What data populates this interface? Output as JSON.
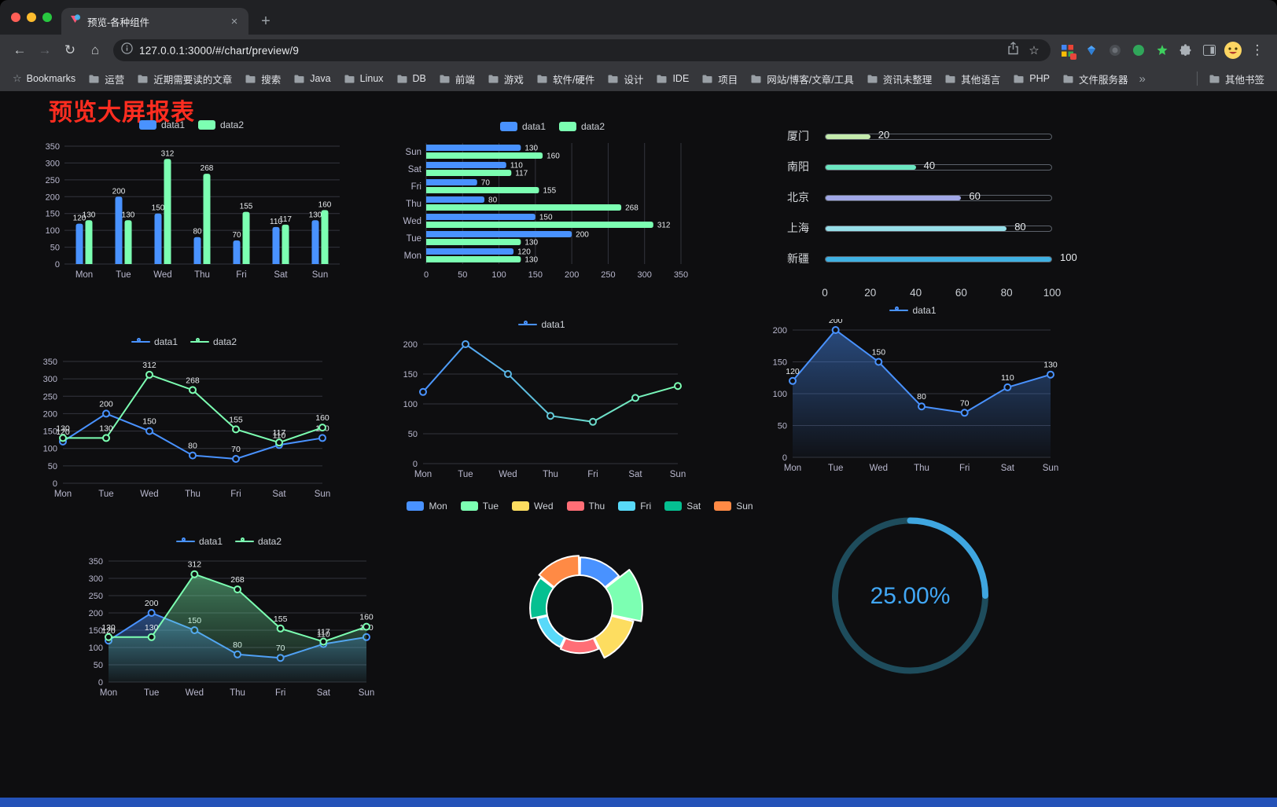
{
  "browser": {
    "tab_title": "预览-各种组件",
    "url": "127.0.0.1:3000/#/chart/preview/9",
    "icons": {
      "close_tab": "×",
      "new_tab": "+",
      "back": "←",
      "forward": "→",
      "reload": "↻",
      "home": "⌂",
      "star": "☆",
      "menu": "⋮"
    }
  },
  "bookmarks": {
    "bookmarks_label": "Bookmarks",
    "folders": [
      "运营",
      "近期需要读的文章",
      "搜索",
      "Java",
      "Linux",
      "DB",
      "前端",
      "游戏",
      "软件/硬件",
      "设计",
      "IDE",
      "项目",
      "网站/博客/文章/工具",
      "资讯未整理",
      "其他语言",
      "PHP",
      "文件服务器"
    ],
    "overflow_icon": "»",
    "other_bookmarks_label": "其他书签"
  },
  "page": {
    "title": "预览大屏报表"
  },
  "chart_data": [
    {
      "id": "grouped-bar",
      "type": "bar",
      "categories": [
        "Mon",
        "Tue",
        "Wed",
        "Thu",
        "Fri",
        "Sat",
        "Sun"
      ],
      "series": [
        {
          "name": "data1",
          "color": "#4992ff",
          "values": [
            120,
            200,
            150,
            80,
            70,
            110,
            130
          ]
        },
        {
          "name": "data2",
          "color": "#7cffb2",
          "values": [
            130,
            130,
            312,
            268,
            155,
            117,
            160
          ]
        }
      ],
      "ylim": [
        0,
        350
      ],
      "yticks": [
        0,
        50,
        100,
        150,
        200,
        250,
        300,
        350
      ],
      "show_labels": true
    },
    {
      "id": "horizontal-grouped-bar",
      "type": "hbar",
      "categories": [
        "Mon",
        "Tue",
        "Wed",
        "Thu",
        "Fri",
        "Sat",
        "Sun"
      ],
      "series": [
        {
          "name": "data1",
          "color": "#4992ff",
          "values": [
            120,
            200,
            150,
            80,
            70,
            110,
            130
          ]
        },
        {
          "name": "data2",
          "color": "#7cffb2",
          "values": [
            130,
            130,
            312,
            268,
            155,
            117,
            160
          ]
        }
      ],
      "xlim": [
        0,
        350
      ],
      "xticks": [
        0,
        50,
        100,
        150,
        200,
        250,
        300,
        350
      ],
      "show_labels": true
    },
    {
      "id": "city-progress-bars",
      "type": "progress",
      "max": 100,
      "items": [
        {
          "label": "厦门",
          "value": 20,
          "color": "#c4ebad"
        },
        {
          "label": "南阳",
          "value": 40,
          "color": "#6be6c1"
        },
        {
          "label": "北京",
          "value": 60,
          "color": "#a0a7e6"
        },
        {
          "label": "上海",
          "value": 80,
          "color": "#96dee8"
        },
        {
          "label": "新疆",
          "value": 100,
          "color": "#3fb1e3"
        }
      ],
      "xticks": [
        0,
        20,
        40,
        60,
        80,
        100
      ]
    },
    {
      "id": "two-series-line",
      "type": "line",
      "categories": [
        "Mon",
        "Tue",
        "Wed",
        "Thu",
        "Fri",
        "Sat",
        "Sun"
      ],
      "series": [
        {
          "name": "data1",
          "color": "#4992ff",
          "values": [
            120,
            200,
            150,
            80,
            70,
            110,
            130
          ]
        },
        {
          "name": "data2",
          "color": "#7cffb2",
          "values": [
            130,
            130,
            312,
            268,
            155,
            117,
            160
          ]
        }
      ],
      "ylim": [
        0,
        350
      ],
      "yticks": [
        0,
        50,
        100,
        150,
        200,
        250,
        300,
        350
      ],
      "show_labels": true
    },
    {
      "id": "gradient-line",
      "type": "line",
      "categories": [
        "Mon",
        "Tue",
        "Wed",
        "Thu",
        "Fri",
        "Sat",
        "Sun"
      ],
      "series": [
        {
          "name": "data1",
          "color": "#4992ff",
          "gradient": [
            "#4992ff",
            "#7cffb2"
          ],
          "values": [
            120,
            200,
            150,
            80,
            70,
            110,
            130
          ]
        }
      ],
      "ylim": [
        0,
        200
      ],
      "yticks": [
        0,
        50,
        100,
        150,
        200
      ],
      "show_labels": false
    },
    {
      "id": "area-line",
      "type": "line",
      "categories": [
        "Mon",
        "Tue",
        "Wed",
        "Thu",
        "Fri",
        "Sat",
        "Sun"
      ],
      "series": [
        {
          "name": "data1",
          "color": "#4992ff",
          "area": true,
          "values": [
            120,
            200,
            150,
            80,
            70,
            110,
            130
          ]
        }
      ],
      "ylim": [
        0,
        200
      ],
      "yticks": [
        0,
        50,
        100,
        150,
        200
      ],
      "show_labels": true
    },
    {
      "id": "two-series-area-line",
      "type": "line",
      "categories": [
        "Mon",
        "Tue",
        "Wed",
        "Thu",
        "Fri",
        "Sat",
        "Sun"
      ],
      "series": [
        {
          "name": "data1",
          "color": "#4992ff",
          "area": true,
          "values": [
            120,
            200,
            150,
            80,
            70,
            110,
            130
          ]
        },
        {
          "name": "data2",
          "color": "#7cffb2",
          "area": true,
          "values": [
            130,
            130,
            312,
            268,
            155,
            117,
            160
          ]
        }
      ],
      "ylim": [
        0,
        350
      ],
      "yticks": [
        0,
        50,
        100,
        150,
        200,
        250,
        300,
        350
      ],
      "show_labels": true
    },
    {
      "id": "rose-pie",
      "type": "pie",
      "rose": true,
      "inner_radius": 42,
      "outer_radius": 80,
      "items": [
        {
          "name": "Mon",
          "value": 120,
          "color": "#4992ff"
        },
        {
          "name": "Tue",
          "value": 200,
          "color": "#7cffb2"
        },
        {
          "name": "Wed",
          "value": 150,
          "color": "#fddd60"
        },
        {
          "name": "Thu",
          "value": 80,
          "color": "#ff6e76"
        },
        {
          "name": "Fri",
          "value": 70,
          "color": "#58d9f9"
        },
        {
          "name": "Sat",
          "value": 110,
          "color": "#05c091"
        },
        {
          "name": "Sun",
          "value": 130,
          "color": "#ff8a45"
        }
      ]
    },
    {
      "id": "percent-gauge",
      "type": "gauge",
      "value": 25,
      "display": "25.00%",
      "color": "#3fa6e0",
      "track_color": "#1e4c5c",
      "text_color": "#41a7f5"
    }
  ]
}
